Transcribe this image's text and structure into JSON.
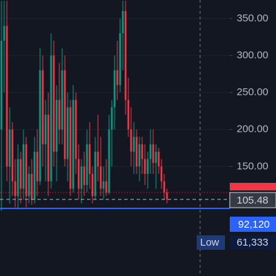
{
  "chart_data": {
    "type": "candlestick",
    "up_color": "#089981",
    "down_color": "#f23645",
    "open": [
      200,
      320,
      340,
      150,
      200,
      130,
      110,
      160,
      120,
      180,
      110,
      140,
      105,
      170,
      130,
      280,
      180,
      220,
      130,
      300,
      170,
      240,
      200,
      280,
      160,
      230,
      120,
      240,
      160,
      120,
      150,
      125,
      180,
      140,
      110,
      170,
      150,
      120,
      130,
      115,
      200,
      230,
      280,
      260,
      330,
      360,
      240,
      200,
      170,
      190,
      150,
      180,
      160,
      140,
      160,
      180,
      155,
      170,
      150,
      130,
      115
    ],
    "high": [
      374,
      374,
      374,
      230,
      210,
      160,
      180,
      170,
      200,
      190,
      150,
      160,
      190,
      200,
      310,
      300,
      240,
      250,
      330,
      320,
      260,
      290,
      310,
      300,
      250,
      240,
      260,
      250,
      180,
      160,
      170,
      200,
      210,
      150,
      190,
      220,
      190,
      150,
      160,
      220,
      240,
      300,
      320,
      350,
      374,
      374,
      270,
      230,
      210,
      200,
      190,
      190,
      180,
      170,
      200,
      200,
      180,
      175,
      160,
      140,
      120
    ],
    "low": [
      90,
      250,
      130,
      100,
      110,
      95,
      92,
      100,
      105,
      95,
      100,
      98,
      100,
      110,
      125,
      150,
      130,
      110,
      120,
      150,
      130,
      180,
      180,
      150,
      130,
      110,
      115,
      140,
      105,
      100,
      110,
      115,
      120,
      100,
      105,
      130,
      110,
      105,
      110,
      112,
      150,
      200,
      240,
      250,
      280,
      220,
      190,
      150,
      140,
      140,
      130,
      140,
      125,
      120,
      140,
      140,
      120,
      140,
      120,
      105,
      100
    ],
    "close": [
      320,
      340,
      150,
      200,
      130,
      110,
      160,
      120,
      180,
      110,
      140,
      105,
      170,
      130,
      280,
      180,
      220,
      130,
      300,
      170,
      240,
      200,
      280,
      160,
      230,
      120,
      240,
      160,
      120,
      150,
      125,
      180,
      140,
      110,
      170,
      150,
      120,
      130,
      115,
      200,
      230,
      280,
      260,
      330,
      360,
      240,
      200,
      170,
      190,
      150,
      180,
      160,
      140,
      160,
      180,
      155,
      170,
      150,
      130,
      115,
      105.48
    ],
    "ylim": [
      2,
      375
    ],
    "yticks": [
      {
        "value": 150,
        "label": "150.00"
      },
      {
        "value": 200,
        "label": "200.00"
      },
      {
        "value": 250,
        "label": "250.00"
      },
      {
        "value": 300,
        "label": "300.00"
      },
      {
        "value": 350,
        "label": "350.00"
      }
    ],
    "last_price_label": "105.48",
    "blue_price_label": "92,120",
    "low_label": "Low",
    "low_value_label": "61,333"
  }
}
